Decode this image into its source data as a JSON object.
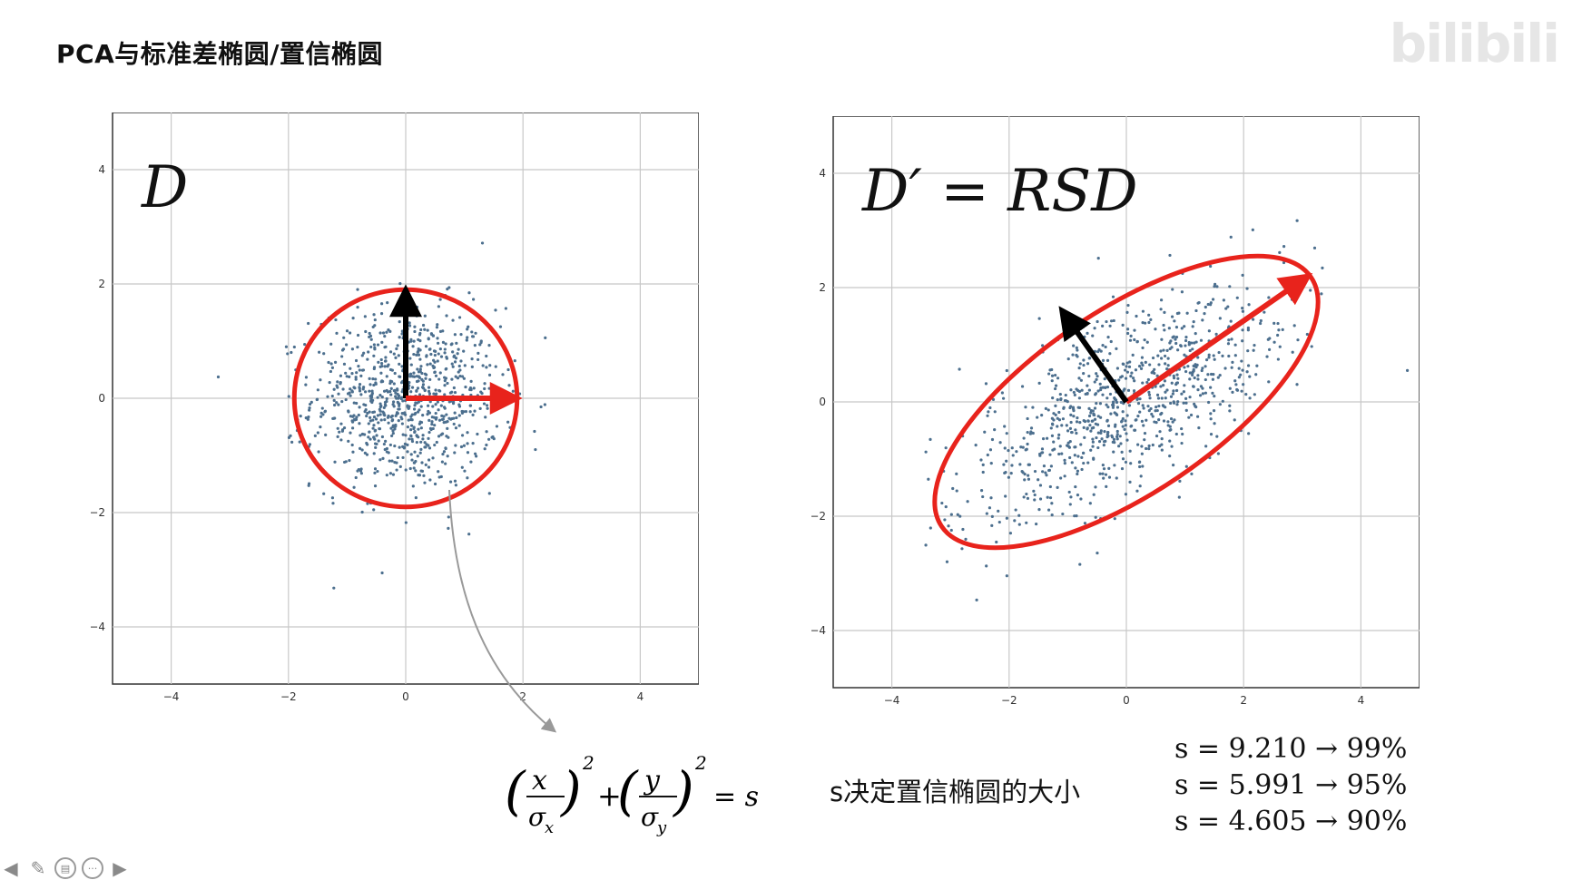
{
  "slide": {
    "title": "PCA与标准差椭圆/置信椭圆",
    "watermark": "bilibili"
  },
  "chart_data": [
    {
      "type": "scatter",
      "title": "D",
      "xlim": [
        -5,
        5
      ],
      "ylim": [
        -5,
        5
      ],
      "xticks": [
        -4,
        -2,
        0,
        2,
        4
      ],
      "yticks": [
        -4,
        -2,
        0,
        2,
        4
      ],
      "grid": true,
      "ellipse": {
        "center": [
          0,
          0
        ],
        "rx": 1.9,
        "ry": 1.9,
        "angle_deg": 0,
        "color": "#e8231c"
      },
      "vectors": [
        {
          "from": [
            0,
            0
          ],
          "to": [
            0,
            1.9
          ],
          "color": "#000000"
        },
        {
          "from": [
            0,
            0
          ],
          "to": [
            1.9,
            0
          ],
          "color": "#e8231c"
        }
      ],
      "point_color": "#4c6f8e"
    },
    {
      "type": "scatter",
      "title": "D′ = RSD",
      "xlim": [
        -5,
        5
      ],
      "ylim": [
        -5,
        5
      ],
      "xticks": [
        -4,
        -2,
        0,
        2,
        4
      ],
      "yticks": [
        -4,
        -2,
        0,
        2,
        4
      ],
      "grid": true,
      "ellipse": {
        "center": [
          0,
          0
        ],
        "rx": 3.8,
        "ry": 1.6,
        "angle_deg": 34,
        "color": "#e8231c"
      },
      "vectors": [
        {
          "from": [
            0,
            0
          ],
          "to": [
            3.1,
            2.2
          ],
          "color": "#e8231c"
        },
        {
          "from": [
            0,
            0
          ],
          "to": [
            -1.1,
            1.6
          ],
          "color": "#000000"
        }
      ],
      "point_color": "#4c6f8e"
    }
  ],
  "formula": {
    "x": "x",
    "sigma_x": "σ",
    "sub_x": "x",
    "y": "y",
    "sigma_y": "σ",
    "sub_y": "y",
    "exponent": "2",
    "plus": "+",
    "equals": "= s"
  },
  "note": "s决定置信椭圆的大小",
  "s_values": [
    "s = 9.210 → 99%",
    "s = 5.991 → 95%",
    "s = 4.605 → 90%"
  ],
  "toolbar": {
    "prev": "◀",
    "pen": "✎",
    "subtitle": "▤",
    "more": "···",
    "next": "▶"
  }
}
